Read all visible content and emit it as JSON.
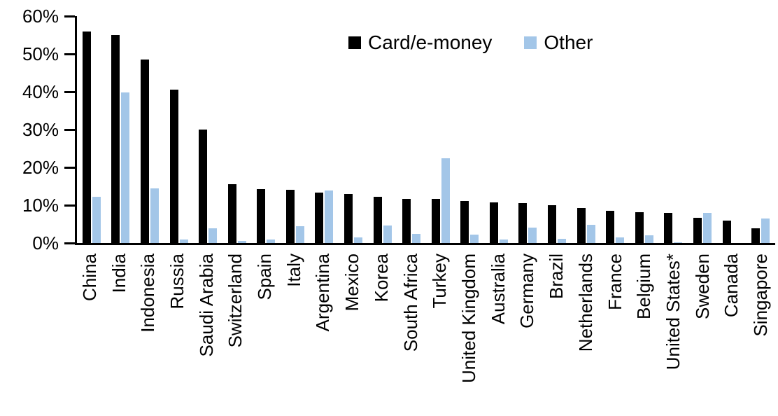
{
  "chart_data": {
    "type": "bar",
    "title": "",
    "xlabel": "",
    "ylabel": "",
    "ylim": [
      0,
      60
    ],
    "grid": false,
    "legend_position": "top-center",
    "y_tick_labels": [
      "60%",
      "50%",
      "40%",
      "30%",
      "20%",
      "10%",
      "0%"
    ],
    "y_tick_values": [
      60,
      50,
      40,
      30,
      20,
      10,
      0
    ],
    "categories": [
      "China",
      "India",
      "Indonesia",
      "Russia",
      "Saudi Arabia",
      "Switzerland",
      "Spain",
      "Italy",
      "Argentina",
      "Mexico",
      "Korea",
      "South Africa",
      "Turkey",
      "United Kingdom",
      "Australia",
      "Germany",
      "Brazil",
      "Netherlands",
      "France",
      "Belgium",
      "United States*",
      "Sweden",
      "Canada",
      "Singapore"
    ],
    "series": [
      {
        "name": "Card/e-money",
        "color": "#000000",
        "values": [
          56,
          55,
          48.5,
          40.5,
          30,
          15.5,
          14.2,
          14.1,
          13.4,
          12.9,
          12.2,
          11.7,
          11.6,
          11.1,
          10.8,
          10.6,
          10,
          9.2,
          8.6,
          8.1,
          7.9,
          6.6,
          5.9,
          3.8
        ]
      },
      {
        "name": "Other",
        "color": "#A3C6E8",
        "values": [
          12.3,
          39.8,
          14.5,
          1,
          3.8,
          0.6,
          1,
          4.5,
          13.9,
          1.4,
          4.6,
          2.4,
          22.5,
          2.3,
          1,
          4,
          1.2,
          4.8,
          1.5,
          2,
          0.2,
          7.9,
          0,
          6.4
        ]
      }
    ]
  },
  "legend": {
    "card_label": "Card/e-money",
    "other_label": "Other"
  }
}
